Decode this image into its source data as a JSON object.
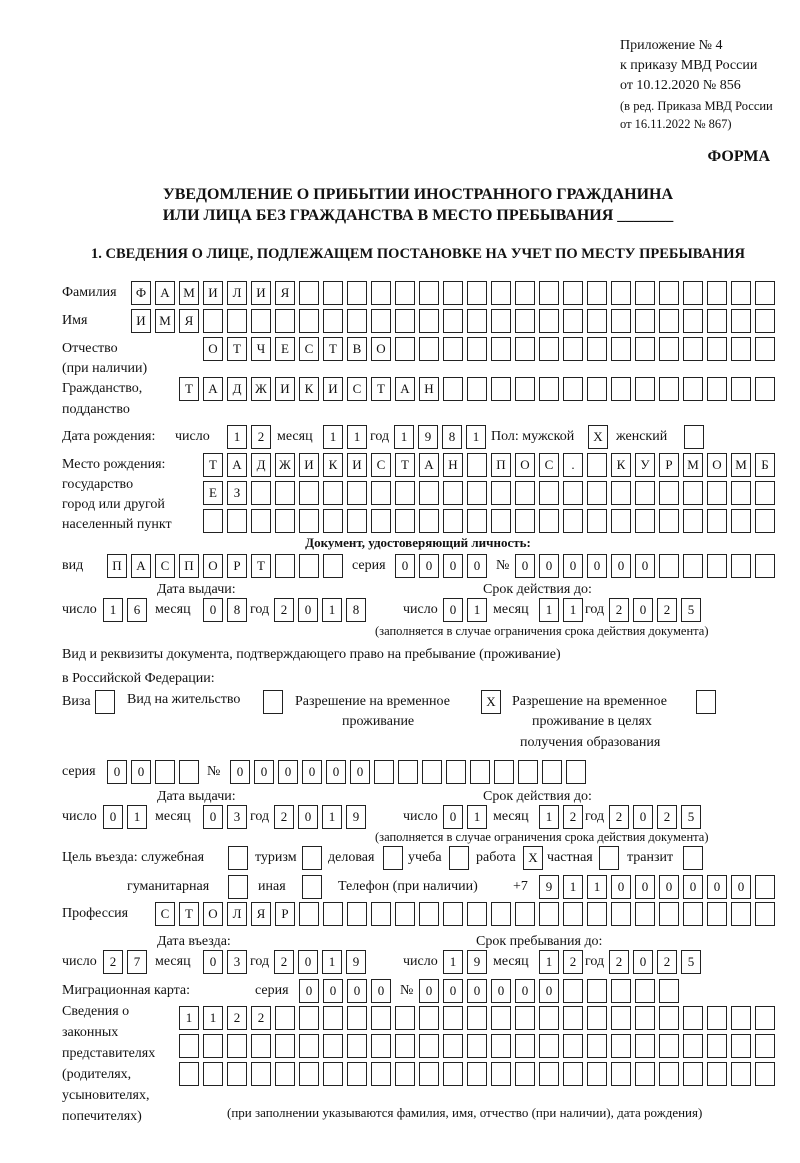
{
  "header": {
    "appendix": "Приложение № 4",
    "order": "к приказу МВД России",
    "order_date": "от 10.12.2020 № 856",
    "edition1": "(в ред. Приказа МВД России",
    "edition2": "от 16.11.2022 № 867)",
    "form": "ФОРМА"
  },
  "title": {
    "line1": "УВЕДОМЛЕНИЕ О ПРИБЫТИИ ИНОСТРАННОГО ГРАЖДАНИНА",
    "line2": "ИЛИ ЛИЦА БЕЗ ГРАЖДАНСТВА В МЕСТО ПРЕБЫВАНИЯ _______"
  },
  "section1": "1. СВЕДЕНИЯ О ЛИЦЕ, ПОДЛЕЖАЩЕМ ПОСТАНОВКЕ НА УЧЕТ ПО МЕСТУ ПРЕБЫВАНИЯ",
  "labels": {
    "surname": "Фамилия",
    "name": "Имя",
    "patronymic1": "Отчество",
    "patronymic2": "(при наличии)",
    "citizenship1": "Гражданство,",
    "citizenship2": "подданство",
    "birth_date": "Дата рождения:",
    "day": "число",
    "month": "месяц",
    "year": "год",
    "sex": "Пол: мужской",
    "female": "женский",
    "birthplace1": "Место рождения:",
    "birthplace2": "государство",
    "birthplace3": "город или другой",
    "birthplace4": "населенный пункт",
    "id_doc": "Документ, удостоверяющий личность:",
    "kind": "вид",
    "series": "серия",
    "number": "№",
    "issue_date": "Дата выдачи:",
    "valid_until": "Срок действия до:",
    "valid_note": "(заполняется в случае ограничения срока действия документа)",
    "right_doc1": "Вид и реквизиты документа, подтверждающего право на пребывание (проживание)",
    "right_doc2": "в Российской Федерации:",
    "visa": "Виза",
    "residence": "Вид на жительство",
    "temp1": "Разрешение на временное",
    "temp2": "проживание",
    "edu1": "Разрешение на временное",
    "edu2": "проживание в целях",
    "edu3": "получения образования",
    "purpose": "Цель въезда: служебная",
    "tourism": "туризм",
    "business": "деловая",
    "study": "учеба",
    "work": "работа",
    "private": "частная",
    "transit": "транзит",
    "humanitarian": "гуманитарная",
    "other": "иная",
    "phone": "Телефон (при наличии)",
    "phone_prefix": "+7",
    "profession": "Профессия",
    "entry_date": "Дата въезда:",
    "stay_until": "Срок пребывания до:",
    "migration_card": "Миграционная карта:",
    "reps1": "Сведения о",
    "reps2": "законных",
    "reps3": "представителях",
    "reps4": "(родителях,",
    "reps5": "усыновителях,",
    "reps6": "попечителях)",
    "reps_note": "(при заполнении указываются фамилия, имя, отчество (при наличии), дата рождения)"
  },
  "fields": {
    "surname": "ФАМИЛИЯ",
    "name": "ИМЯ",
    "patronymic": "ОТЧЕСТВО",
    "citizenship": "ТАДЖИКИСТАН",
    "birth_day": "12",
    "birth_month": "11",
    "birth_year": "1981",
    "sex_male": "X",
    "sex_female": "",
    "birthplace_1": "ТАДЖИКИСТАН ПОС. КУРМОМБ",
    "birthplace_2": "ЕЗ",
    "birthplace_3": "",
    "doc_kind": "ПАСПОРТ",
    "doc_series": "0000",
    "doc_number": "000000",
    "doc_issue_day": "16",
    "doc_issue_month": "08",
    "doc_issue_year": "2018",
    "doc_valid_day": "01",
    "doc_valid_month": "11",
    "doc_valid_year": "2025",
    "visa": "",
    "residence": "",
    "temp_residence": "X",
    "temp_residence_edu": "",
    "right_series": "00",
    "right_number": "000000",
    "right_issue_day": "01",
    "right_issue_month": "03",
    "right_issue_year": "2019",
    "right_valid_day": "01",
    "right_valid_month": "12",
    "right_valid_year": "2025",
    "purpose_official": "",
    "purpose_tourism": "",
    "purpose_business": "",
    "purpose_study": "",
    "purpose_work": "X",
    "purpose_private": "",
    "purpose_transit": "",
    "purpose_humanitarian": "",
    "purpose_other": "",
    "phone": "911000000",
    "profession": "СТОЛЯР",
    "entry_day": "27",
    "entry_month": "03",
    "entry_year": "2019",
    "stay_day": "19",
    "stay_month": "12",
    "stay_year": "2025",
    "mc_series": "0000",
    "mc_number": "000000",
    "reps_1": "1122",
    "reps_2": "",
    "reps_3": ""
  }
}
